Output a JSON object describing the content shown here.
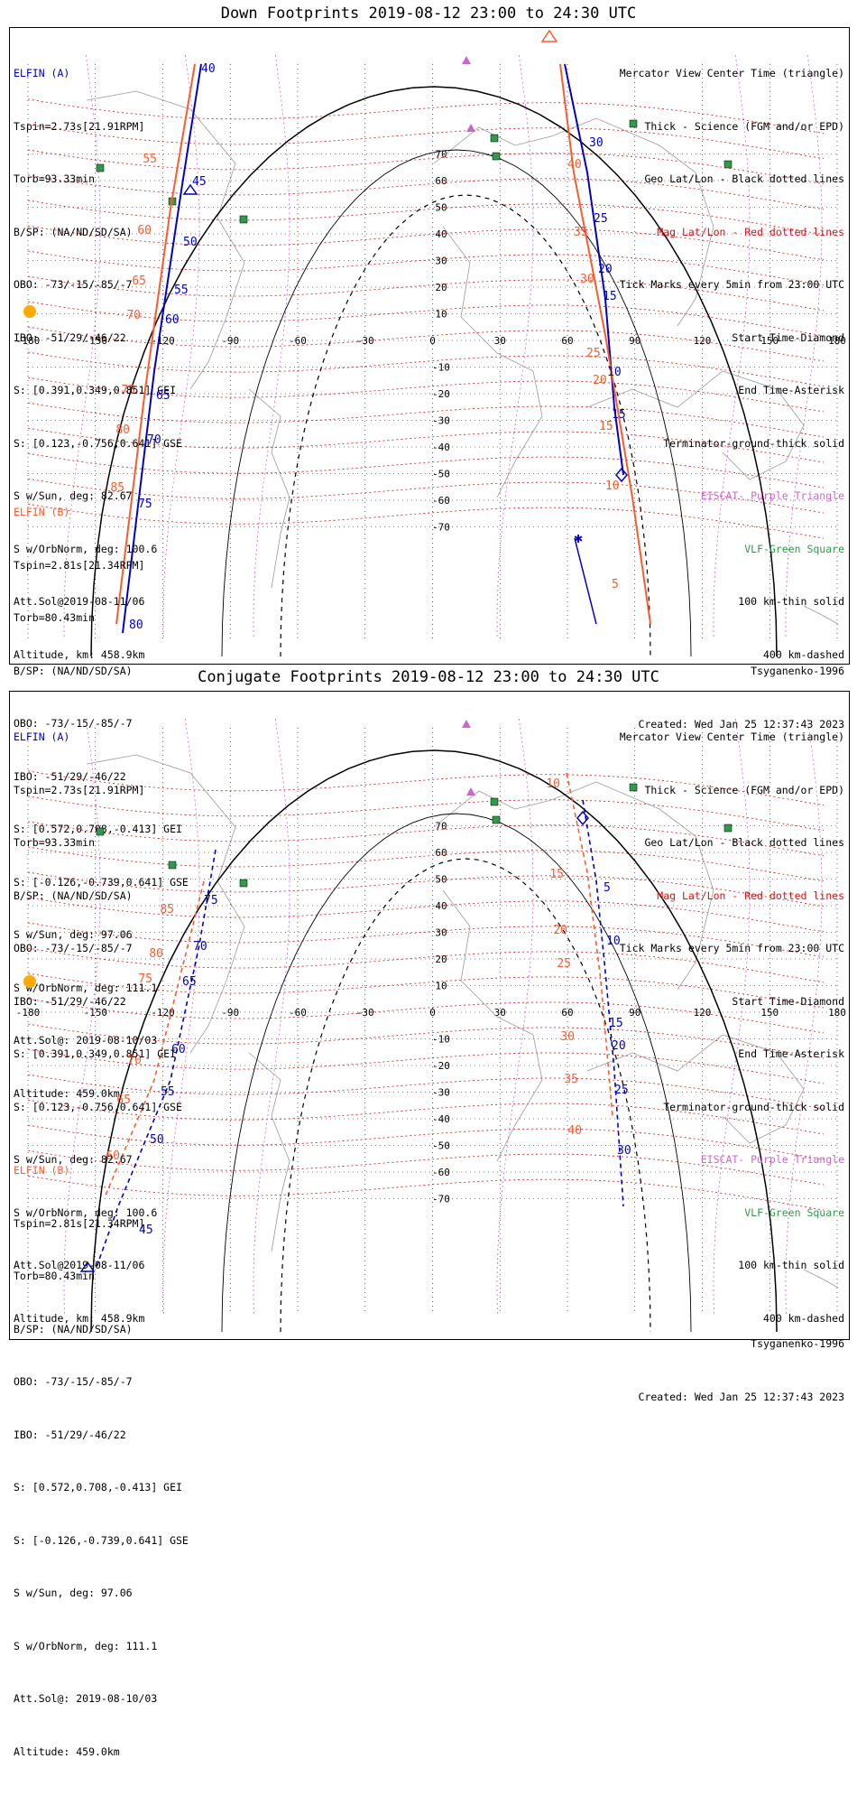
{
  "colors": {
    "elfin_a": "#0000cc",
    "elfin_b": "#ff5a2d",
    "mag_grid": "#e01010",
    "geo_grid": "#000000",
    "eiscat": "#cc66cc",
    "vlf": "#2e9a4a",
    "coast": "#9a9a9a",
    "sun": "#ffaa00"
  },
  "panels": [
    {
      "title": "Down Footprints 2019-08-12 23:00 to 24:30 UTC",
      "elfin_a": {
        "name": "ELFIN (A)",
        "lines": [
          "Tspin=2.73s[21.91RPM]",
          "Torb=93.33min",
          "B/SP: (NA/ND/SD/SA)",
          "OBO: -73/-15/-85/-7",
          "IBO: -51/29/-46/22",
          "S: [0.391,0.349,0.851] GEI",
          "S: [0.123,-0.756,0.641] GSE",
          "S w/Sun, deg: 82.67",
          "S w/OrbNorm, deg: 100.6",
          "Att.Sol@2019-08-11/06",
          "Altitude, km: 458.9km"
        ]
      },
      "elfin_b": {
        "name": "ELFIN (B)",
        "lines": [
          "Tspin=2.81s[21.34RPM]",
          "Torb=80.43min",
          "B/SP: (NA/ND/SD/SA)",
          "OBO: -73/-15/-85/-7",
          "IBO: -51/29/-46/22",
          "S: [0.572,0.708,-0.413] GEI",
          "S: [-0.126,-0.739,0.641] GSE",
          "S w/Sun, deg: 97.06",
          "S w/OrbNorm, deg: 111.1",
          "Att.Sol@: 2019-08-10/03",
          "Altitude: 459.0km"
        ]
      },
      "legend": [
        {
          "text": "Mercator View Center Time (triangle)",
          "color": "black"
        },
        {
          "text": "Thick - Science (FGM and/or EPD)",
          "color": "black"
        },
        {
          "text": "Geo Lat/Lon - Black dotted lines",
          "color": "black"
        },
        {
          "text": "Mag Lat/Lon - Red dotted lines",
          "color": "red"
        },
        {
          "text": "Tick Marks every 5min from 23:00 UTC",
          "color": "black"
        },
        {
          "text": "Start Time-Diamond",
          "color": "black"
        },
        {
          "text": "End Time-Asterisk",
          "color": "black"
        },
        {
          "text": "Terminator-ground-thick solid",
          "color": "black"
        },
        {
          "text": "EISCAT- Purple Triangle",
          "color": "purple"
        },
        {
          "text": "VLF-Green Square",
          "color": "green"
        },
        {
          "text": "100 km-thin solid",
          "color": "black"
        },
        {
          "text": "400 km-dashed",
          "color": "black"
        }
      ],
      "model": "Tsyganenko-1996",
      "created": "Created: Wed Jan 25 12:37:43 2023",
      "lon_ticks": [
        "-180",
        "-150",
        "-120",
        "-90",
        "-60",
        "-30",
        "0",
        "30",
        "60",
        "90",
        "120",
        "150",
        "180"
      ],
      "lat_ticks": [
        "70",
        "60",
        "50",
        "40",
        "30",
        "20",
        "10",
        "-10",
        "-20",
        "-30",
        "-40",
        "-50",
        "-60",
        "-70"
      ],
      "a_track_ticks": [
        "40",
        "45",
        "50",
        "55",
        "60",
        "65",
        "70",
        "75",
        "80"
      ],
      "b_track_ticks": [
        "55",
        "60",
        "65",
        "70",
        "75",
        "80",
        "85"
      ],
      "a_right_ticks": [
        "30",
        "25",
        "20",
        "15",
        "10",
        "15"
      ],
      "b_right_ticks": [
        "40",
        "35",
        "30",
        "25",
        "20",
        "15",
        "10",
        "5"
      ]
    },
    {
      "title": "Conjugate Footprints 2019-08-12 23:00 to 24:30 UTC",
      "elfin_a": {
        "name": "ELFIN (A)",
        "lines": [
          "Tspin=2.73s[21.91RPM]",
          "Torb=93.33min",
          "B/SP: (NA/ND/SD/SA)",
          "OBO: -73/-15/-85/-7",
          "IBO: -51/29/-46/22",
          "S: [0.391,0.349,0.851] GEI",
          "S: [0.123,-0.756,0.641] GSE",
          "S w/Sun, deg: 82.67",
          "S w/OrbNorm, deg: 100.6",
          "Att.Sol@2019-08-11/06",
          "Altitude, km: 458.9km"
        ]
      },
      "elfin_b": {
        "name": "ELFIN (B)",
        "lines": [
          "Tspin=2.81s[21.34RPM]",
          "Torb=80.43min",
          "B/SP: (NA/ND/SD/SA)",
          "OBO: -73/-15/-85/-7",
          "IBO: -51/29/-46/22",
          "S: [0.572,0.708,-0.413] GEI",
          "S: [-0.126,-0.739,0.641] GSE",
          "S w/Sun, deg: 97.06",
          "S w/OrbNorm, deg: 111.1",
          "Att.Sol@: 2019-08-10/03",
          "Altitude: 459.0km"
        ]
      },
      "legend": [
        {
          "text": "Mercator View Center Time (triangle)",
          "color": "black"
        },
        {
          "text": "Thick - Science (FGM and/or EPD)",
          "color": "black"
        },
        {
          "text": "Geo Lat/Lon - Black dotted lines",
          "color": "black"
        },
        {
          "text": "Mag Lat/Lon - Red dotted lines",
          "color": "red"
        },
        {
          "text": "Tick Marks every 5min from 23:00 UTC",
          "color": "black"
        },
        {
          "text": "Start Time-Diamond",
          "color": "black"
        },
        {
          "text": "End Time-Asterisk",
          "color": "black"
        },
        {
          "text": "Terminator-ground-thick solid",
          "color": "black"
        },
        {
          "text": "EISCAT- Purple Triangle",
          "color": "purple"
        },
        {
          "text": "VLF-Green Square",
          "color": "green"
        },
        {
          "text": "100 km-thin solid",
          "color": "black"
        },
        {
          "text": "400 km-dashed",
          "color": "black"
        }
      ],
      "model": "Tsyganenko-1996",
      "created": "Created: Wed Jan 25 12:37:43 2023",
      "lon_ticks": [
        "-180",
        "-150",
        "-120",
        "-90",
        "-60",
        "-30",
        "0",
        "30",
        "60",
        "90",
        "120",
        "150",
        "180"
      ],
      "lat_ticks": [
        "70",
        "60",
        "50",
        "40",
        "30",
        "20",
        "10",
        "-10",
        "-20",
        "-30",
        "-40",
        "-50",
        "-60",
        "-70"
      ],
      "a_track_ticks": [
        "75",
        "70",
        "65",
        "60",
        "55",
        "50",
        "45"
      ],
      "b_track_ticks": [
        "85",
        "80",
        "75",
        "70",
        "65",
        "60"
      ],
      "a_right_ticks": [
        "5",
        "10",
        "15",
        "20",
        "25",
        "30"
      ],
      "b_right_ticks": [
        "10",
        "15",
        "20",
        "25",
        "30",
        "35",
        "40"
      ]
    }
  ]
}
